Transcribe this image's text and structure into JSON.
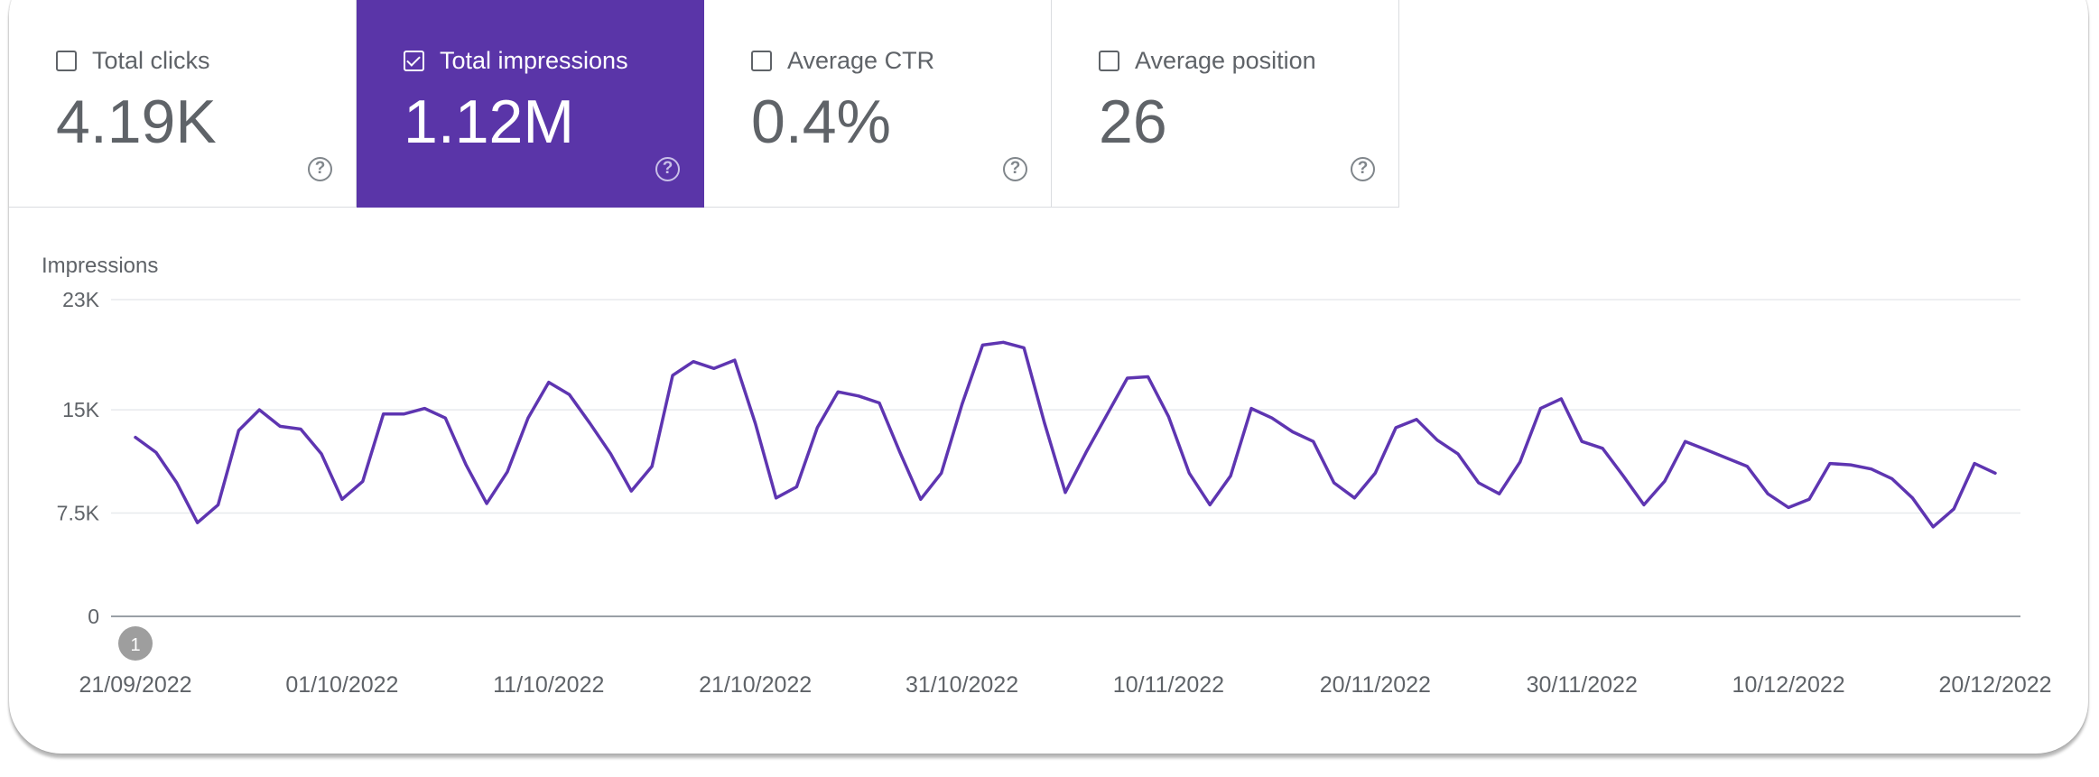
{
  "metrics": [
    {
      "label": "Total clicks",
      "value": "4.19K",
      "checked": false
    },
    {
      "label": "Total impressions",
      "value": "1.12M",
      "checked": true
    },
    {
      "label": "Average CTR",
      "value": "0.4%",
      "checked": false
    },
    {
      "label": "Average position",
      "value": "26",
      "checked": false
    }
  ],
  "help_glyph": "?",
  "colors": {
    "accent": "#5a35a8",
    "line": "#5e35b1",
    "grid": "#e8eaed",
    "axis": "#9aa0a6",
    "text": "#5f6368"
  },
  "chart_data": {
    "type": "line",
    "title": "",
    "ylabel": "Impressions",
    "xlabel": "",
    "ylim": [
      0,
      23000
    ],
    "y_ticks": [
      {
        "value": 0,
        "label": "0"
      },
      {
        "value": 7500,
        "label": "7.5K"
      },
      {
        "value": 15000,
        "label": "15K"
      },
      {
        "value": 23000,
        "label": "23K"
      }
    ],
    "x_tick_labels": [
      "21/09/2022",
      "01/10/2022",
      "11/10/2022",
      "21/10/2022",
      "31/10/2022",
      "10/11/2022",
      "20/11/2022",
      "30/11/2022",
      "10/12/2022",
      "20/12/2022"
    ],
    "annotation": {
      "date": "21/09/2022",
      "label": "1"
    },
    "grid": true,
    "series": [
      {
        "x": [
          "21/09/2022",
          "22/09/2022",
          "23/09/2022",
          "24/09/2022",
          "25/09/2022",
          "26/09/2022",
          "27/09/2022",
          "28/09/2022",
          "29/09/2022",
          "30/09/2022",
          "01/10/2022",
          "02/10/2022",
          "03/10/2022",
          "04/10/2022",
          "05/10/2022",
          "06/10/2022",
          "07/10/2022",
          "08/10/2022",
          "09/10/2022",
          "10/10/2022",
          "11/10/2022",
          "12/10/2022",
          "13/10/2022",
          "14/10/2022",
          "15/10/2022",
          "16/10/2022",
          "17/10/2022",
          "18/10/2022",
          "19/10/2022",
          "20/10/2022",
          "21/10/2022",
          "22/10/2022",
          "23/10/2022",
          "24/10/2022",
          "25/10/2022",
          "26/10/2022",
          "27/10/2022",
          "28/10/2022",
          "29/10/2022",
          "30/10/2022",
          "31/10/2022",
          "01/11/2022",
          "02/11/2022",
          "03/11/2022",
          "04/11/2022",
          "05/11/2022",
          "06/11/2022",
          "07/11/2022",
          "08/11/2022",
          "09/11/2022",
          "10/11/2022",
          "11/11/2022",
          "12/11/2022",
          "13/11/2022",
          "14/11/2022",
          "15/11/2022",
          "16/11/2022",
          "17/11/2022",
          "18/11/2022",
          "19/11/2022",
          "20/11/2022",
          "21/11/2022",
          "22/11/2022",
          "23/11/2022",
          "24/11/2022",
          "25/11/2022",
          "26/11/2022",
          "27/11/2022",
          "28/11/2022",
          "29/11/2022",
          "30/11/2022",
          "01/12/2022",
          "02/12/2022",
          "03/12/2022",
          "04/12/2022",
          "05/12/2022",
          "06/12/2022",
          "07/12/2022",
          "08/12/2022",
          "09/12/2022",
          "10/12/2022",
          "11/12/2022",
          "12/12/2022",
          "13/12/2022",
          "14/12/2022",
          "15/12/2022",
          "16/12/2022",
          "17/12/2022",
          "18/12/2022",
          "19/12/2022",
          "20/12/2022"
        ],
        "values": [
          13000,
          11900,
          9700,
          6800,
          8100,
          13500,
          15000,
          13800,
          13600,
          11800,
          8500,
          9800,
          14700,
          14700,
          15100,
          14400,
          11000,
          8200,
          10500,
          14400,
          17000,
          16100,
          14000,
          11800,
          9100,
          10900,
          17500,
          18500,
          18000,
          18600,
          14000,
          8600,
          9400,
          13700,
          16300,
          16000,
          15500,
          11900,
          8500,
          10400,
          15400,
          19700,
          19900,
          19500,
          14000,
          9000,
          11900,
          14600,
          17300,
          17400,
          14500,
          10400,
          8100,
          10200,
          15100,
          14400,
          13400,
          12700,
          9700,
          8600,
          10400,
          13700,
          14300,
          12800,
          11800,
          9700,
          8900,
          11200,
          15100,
          15800,
          12700,
          12200,
          10200,
          8100,
          9800,
          12700,
          12100,
          11500,
          10900,
          8900,
          7900,
          8500,
          11100,
          11000,
          10700,
          10000,
          8600,
          6500,
          7800,
          11100,
          10400
        ]
      }
    ]
  }
}
